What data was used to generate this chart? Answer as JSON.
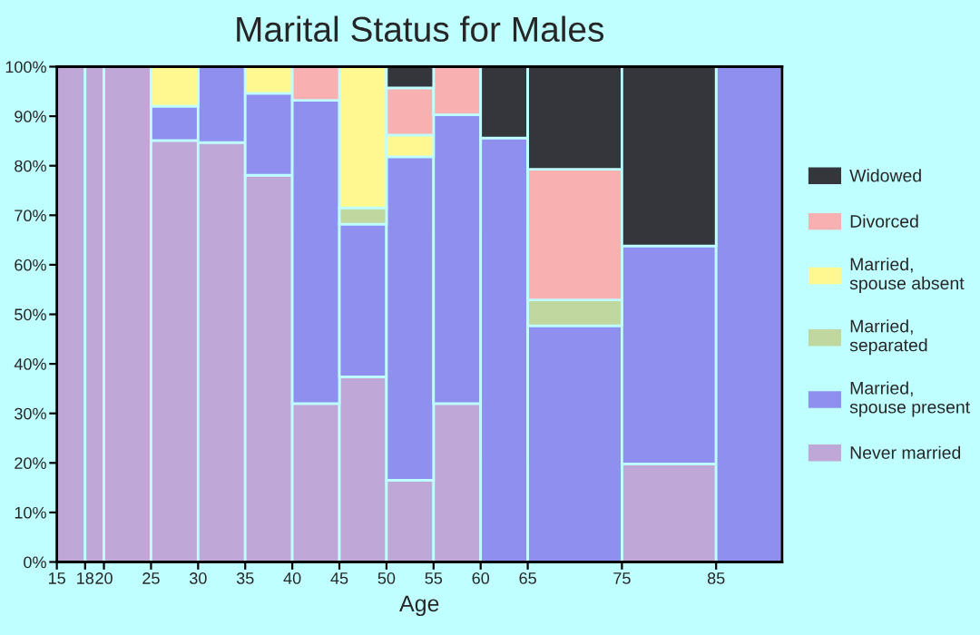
{
  "chart_data": {
    "type": "bar",
    "stacked": true,
    "title": "Marital Status for Males",
    "xlabel": "Age",
    "x": [
      16.5,
      19,
      22.5,
      27.5,
      32.5,
      37.5,
      42.5,
      47.5,
      52.5,
      57.5,
      62.5,
      70,
      80,
      88.5
    ],
    "xlim": [
      15,
      92
    ],
    "xticks": [
      15,
      18,
      20,
      25,
      30,
      35,
      40,
      45,
      50,
      55,
      60,
      65,
      75,
      85
    ],
    "ylim": [
      0,
      100
    ],
    "yticks": [
      {
        "value": 0,
        "label": "0%"
      },
      {
        "value": 10,
        "label": "10%"
      },
      {
        "value": 20,
        "label": "20%"
      },
      {
        "value": 30,
        "label": "30%"
      },
      {
        "value": 40,
        "label": "40%"
      },
      {
        "value": 50,
        "label": "50%"
      },
      {
        "value": 60,
        "label": "60%"
      },
      {
        "value": 70,
        "label": "70%"
      },
      {
        "value": 80,
        "label": "80%"
      },
      {
        "value": 90,
        "label": "90%"
      },
      {
        "value": 100,
        "label": "100%"
      }
    ],
    "legend": "right",
    "series": [
      {
        "name": "Never married",
        "color": "#bfa8d8",
        "values": [
          100,
          100,
          100,
          85.1,
          84.7,
          78.1,
          32.0,
          37.4,
          16.5,
          32.0,
          null,
          null,
          19.8,
          null
        ]
      },
      {
        "name": "Married,\nspouse present",
        "color": "#8f8ff0",
        "values": [
          null,
          null,
          null,
          6.9,
          15.3,
          16.5,
          61.2,
          30.8,
          65.3,
          58.3,
          85.6,
          47.7,
          44.0,
          100
        ]
      },
      {
        "name": "Married,\nseparated",
        "color": "#c0d8a0",
        "values": [
          null,
          null,
          null,
          null,
          null,
          null,
          null,
          3.3,
          null,
          null,
          null,
          5.2,
          null,
          null
        ]
      },
      {
        "name": "Married,\nspouse absent",
        "color": "#fff890",
        "values": [
          null,
          null,
          null,
          8.0,
          null,
          5.4,
          null,
          28.5,
          4.4,
          null,
          null,
          null,
          null,
          null
        ]
      },
      {
        "name": "Divorced",
        "color": "#f8b0b0",
        "values": [
          null,
          null,
          null,
          null,
          null,
          null,
          6.8,
          null,
          9.5,
          9.7,
          null,
          26.4,
          null,
          null
        ]
      },
      {
        "name": "Widowed",
        "color": "#35363c",
        "values": [
          null,
          null,
          null,
          null,
          null,
          null,
          null,
          null,
          4.3,
          null,
          14.4,
          20.7,
          36.2,
          null
        ]
      }
    ]
  }
}
